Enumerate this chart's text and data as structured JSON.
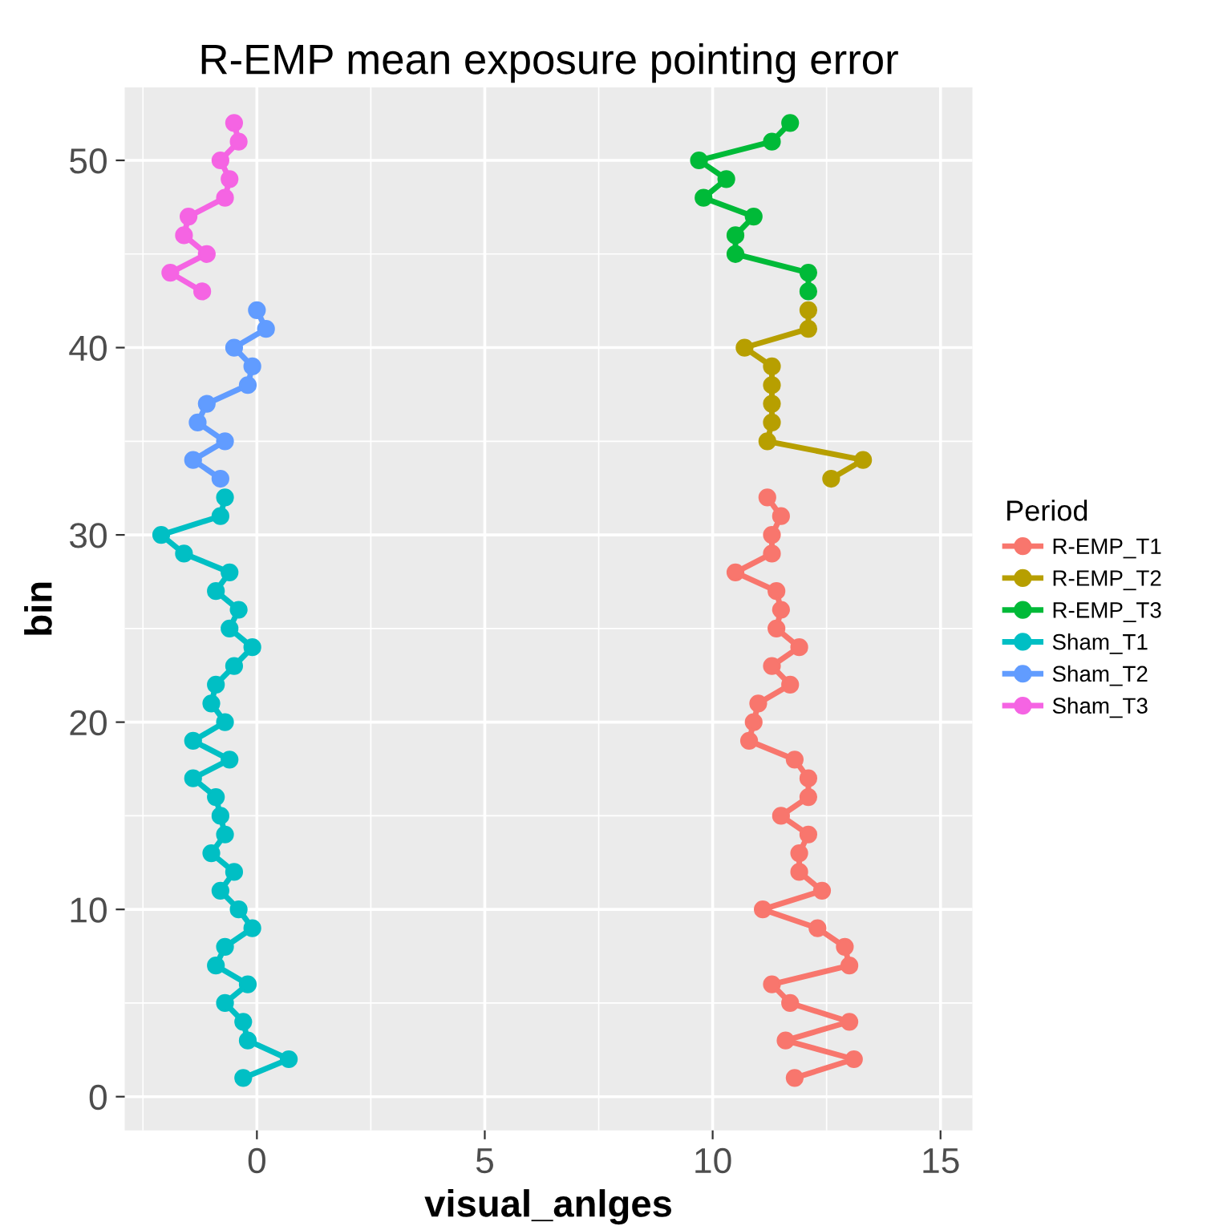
{
  "chart_data": {
    "type": "line",
    "title": "R-EMP mean exposure pointing error",
    "xlabel": "visual_anlges",
    "ylabel": "bin",
    "legend_title": "Period",
    "legend": "right",
    "grid": true,
    "marker": "circle",
    "line_style": "solid",
    "xlim": [
      -2.9,
      15.7
    ],
    "xticks": [
      0,
      5,
      10,
      15
    ],
    "ylim": [
      -1.8,
      53.9
    ],
    "yticks": [
      0,
      10,
      20,
      30,
      40,
      50
    ],
    "series": [
      {
        "name": "R-EMP_T1",
        "color": "#f8766d",
        "x": [
          11.8,
          13.1,
          11.6,
          13.0,
          11.7,
          11.3,
          13.0,
          12.9,
          12.3,
          11.1,
          12.4,
          11.9,
          11.9,
          12.1,
          11.5,
          12.1,
          12.1,
          11.8,
          10.8,
          10.9,
          11.0,
          11.7,
          11.3,
          11.9,
          11.4,
          11.5,
          11.4,
          10.5,
          11.3,
          11.3,
          11.5,
          11.2
        ],
        "values": [
          1,
          2,
          3,
          4,
          5,
          6,
          7,
          8,
          9,
          10,
          11,
          12,
          13,
          14,
          15,
          16,
          17,
          18,
          19,
          20,
          21,
          22,
          23,
          24,
          25,
          26,
          27,
          28,
          29,
          30,
          31,
          32
        ]
      },
      {
        "name": "R-EMP_T2",
        "color": "#b79f00",
        "x": [
          12.6,
          13.3,
          11.2,
          11.3,
          11.3,
          11.3,
          11.3,
          10.7,
          12.1,
          12.1
        ],
        "values": [
          33,
          34,
          35,
          36,
          37,
          38,
          39,
          40,
          41,
          42
        ]
      },
      {
        "name": "R-EMP_T3",
        "color": "#00ba38",
        "x": [
          12.1,
          12.1,
          10.5,
          10.5,
          10.9,
          9.8,
          10.3,
          9.7,
          11.3,
          11.7
        ],
        "values": [
          43,
          44,
          45,
          46,
          47,
          48,
          49,
          50,
          51,
          52
        ]
      },
      {
        "name": "Sham_T1",
        "color": "#00bfc4",
        "x": [
          -0.3,
          0.7,
          -0.2,
          -0.3,
          -0.7,
          -0.2,
          -0.9,
          -0.7,
          -0.1,
          -0.4,
          -0.8,
          -0.5,
          -1.0,
          -0.7,
          -0.8,
          -0.9,
          -1.4,
          -0.6,
          -1.4,
          -0.7,
          -1.0,
          -0.9,
          -0.5,
          -0.1,
          -0.6,
          -0.4,
          -0.9,
          -0.6,
          -1.6,
          -2.1,
          -0.8,
          -0.7
        ],
        "values": [
          1,
          2,
          3,
          4,
          5,
          6,
          7,
          8,
          9,
          10,
          11,
          12,
          13,
          14,
          15,
          16,
          17,
          18,
          19,
          20,
          21,
          22,
          23,
          24,
          25,
          26,
          27,
          28,
          29,
          30,
          31,
          32
        ]
      },
      {
        "name": "Sham_T2",
        "color": "#619cff",
        "x": [
          -0.8,
          -1.4,
          -0.7,
          -1.3,
          -1.1,
          -0.2,
          -0.1,
          -0.5,
          0.2,
          0.0
        ],
        "values": [
          33,
          34,
          35,
          36,
          37,
          38,
          39,
          40,
          41,
          42
        ]
      },
      {
        "name": "Sham_T3",
        "color": "#f564e3",
        "x": [
          -1.2,
          -1.9,
          -1.1,
          -1.6,
          -1.5,
          -0.7,
          -0.6,
          -0.8,
          -0.4,
          -0.5
        ],
        "values": [
          43,
          44,
          45,
          46,
          47,
          48,
          49,
          50,
          51,
          52
        ]
      }
    ]
  }
}
